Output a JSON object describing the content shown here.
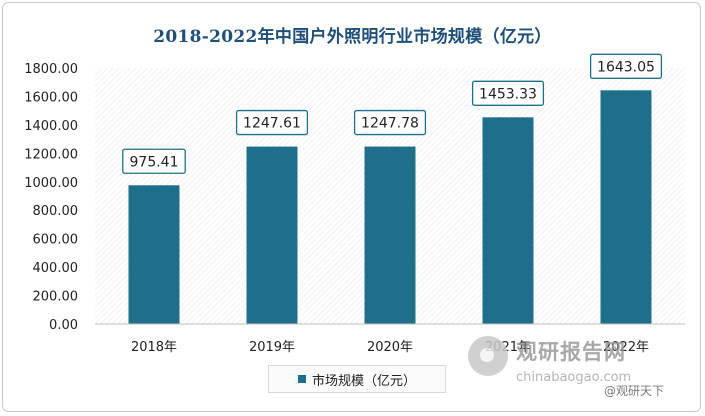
{
  "chart_data": {
    "type": "bar",
    "title": "2018-2022年中国户外照明行业市场规模（亿元）",
    "categories": [
      "2018年",
      "2019年",
      "2020年",
      "2021年",
      "2022年"
    ],
    "series": [
      {
        "name": "市场规模（亿元）",
        "values": [
          975.41,
          1247.61,
          1247.78,
          1453.33,
          1643.05
        ]
      }
    ],
    "data_labels": [
      "975.41",
      "1247.61",
      "1247.78",
      "1453.33",
      "1643.05"
    ],
    "y_ticks": [
      "0.00",
      "200.00",
      "400.00",
      "600.00",
      "800.00",
      "1000.00",
      "1200.00",
      "1400.00",
      "1600.00",
      "1800.00"
    ],
    "ylim": [
      0,
      1800
    ],
    "xlabel": "",
    "ylabel": "",
    "grid": false,
    "legend_position": "bottom",
    "colors": {
      "bar": "#1f6f8b",
      "label_border": "#1f6f8b",
      "title": "#1f4e79"
    }
  },
  "watermark": {
    "name": "观研报告网",
    "url": "chinabaogao.com",
    "credit": "@观研天下"
  }
}
